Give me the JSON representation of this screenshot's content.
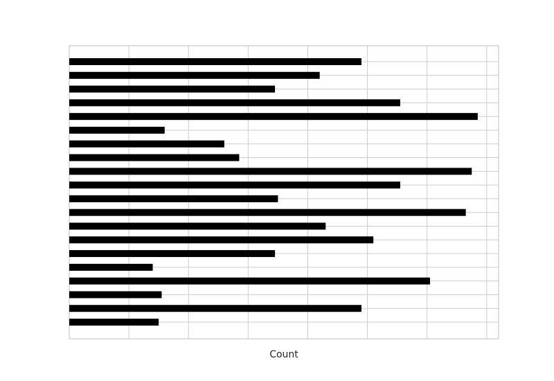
{
  "chart_data": {
    "type": "barh",
    "xlabel": "Count",
    "categories": [
      null,
      null,
      null,
      null,
      null,
      null,
      null,
      null,
      null,
      null,
      null,
      null,
      null,
      null,
      null,
      null,
      null,
      null,
      null,
      null
    ],
    "values": [
      49,
      42,
      34.5,
      55.5,
      68.5,
      16,
      26,
      28.5,
      67.5,
      55.5,
      35,
      66.5,
      43,
      51,
      34.5,
      14,
      60.5,
      15.5,
      49,
      15
    ],
    "color": "#000000",
    "xlim": [
      0,
      72
    ],
    "xticks": [
      0,
      10,
      20,
      30,
      40,
      50,
      60,
      70
    ],
    "grid": true
  }
}
